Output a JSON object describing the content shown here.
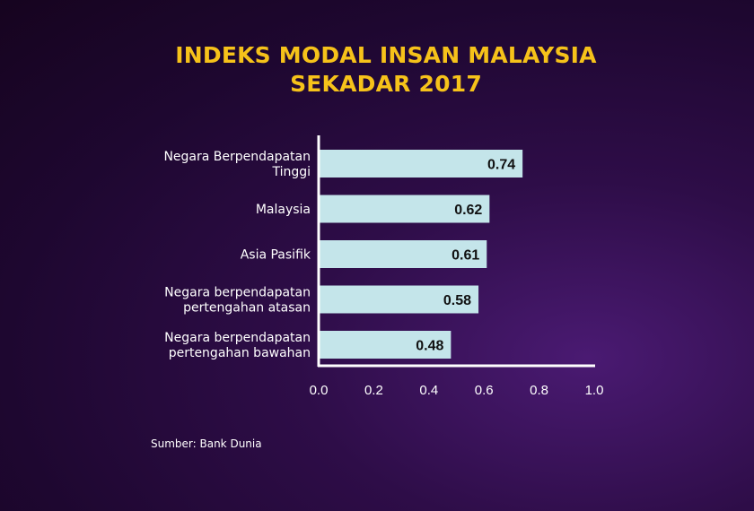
{
  "title_line1": "INDEKS MODAL INSAN MALAYSIA",
  "title_line2": "SEKADAR 2017",
  "source": "Sumber: Bank Dunia",
  "colors": {
    "bar": "#c4e5ea",
    "title": "#f6c21a",
    "axis": "#ffffff"
  },
  "chart_data": {
    "type": "bar",
    "orientation": "horizontal",
    "categories": [
      [
        "Negara Berpendapatan",
        "Tinggi"
      ],
      [
        "Malaysia"
      ],
      [
        "Asia Pasifik"
      ],
      [
        "Negara berpendapatan",
        "pertengahan atasan"
      ],
      [
        "Negara berpendapatan",
        "pertengahan bawahan"
      ]
    ],
    "values": [
      0.74,
      0.62,
      0.61,
      0.58,
      0.48
    ],
    "value_labels": [
      "0.74",
      "0.62",
      "0.61",
      "0.58",
      "0.48"
    ],
    "xlim": [
      0,
      1.0
    ],
    "xticks": [
      "0.0",
      "0.2",
      "0.4",
      "0.6",
      "0.8",
      "1.0"
    ],
    "grid": false
  }
}
